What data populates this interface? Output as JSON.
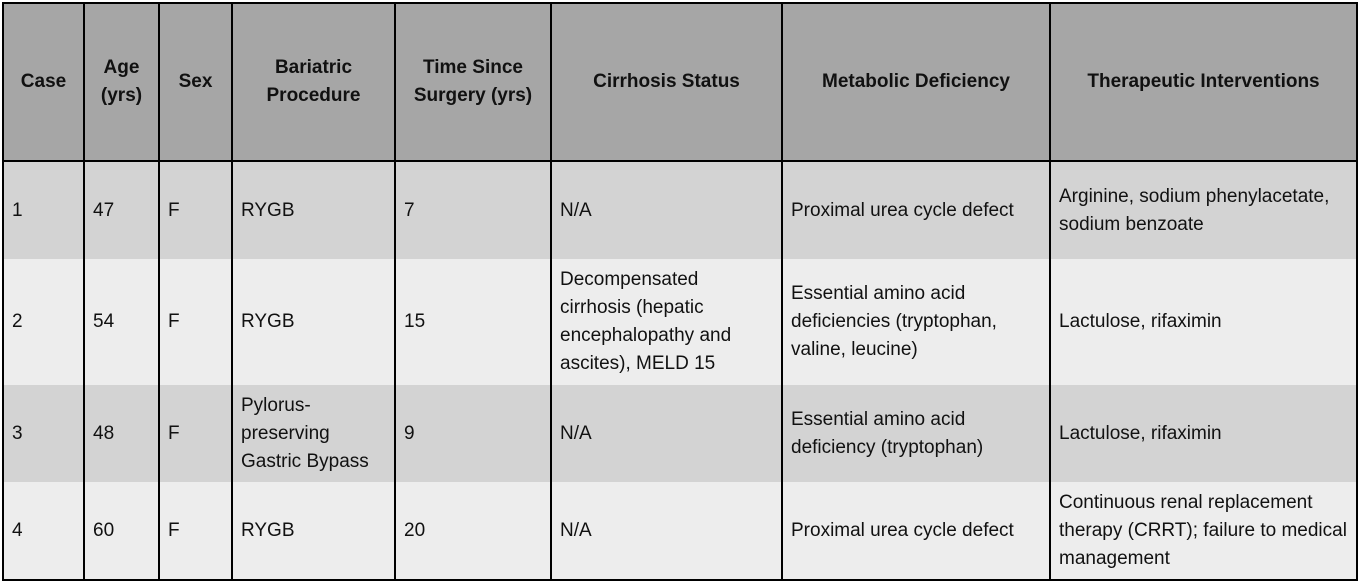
{
  "table": {
    "headers": [
      "Case",
      "Age (yrs)",
      "Sex",
      "Bariatric Procedure",
      "Time Since Surgery (yrs)",
      "Cirrhosis Status",
      "Metabolic Deficiency",
      "Therapeutic Interventions"
    ],
    "rows": [
      {
        "case": "1",
        "age": "47",
        "sex": "F",
        "procedure": "RYGB",
        "time_since_surgery": "7",
        "cirrhosis_status": "N/A",
        "metabolic_deficiency": "Proximal urea cycle defect",
        "interventions": "Arginine, sodium phenylacetate, sodium benzoate"
      },
      {
        "case": "2",
        "age": "54",
        "sex": "F",
        "procedure": "RYGB",
        "time_since_surgery": "15",
        "cirrhosis_status": "Decompensated cirrhosis (hepatic encephalopathy and ascites), MELD 15",
        "metabolic_deficiency": "Essential amino acid deficiencies (tryptophan, valine, leucine)",
        "interventions": "Lactulose, rifaximin"
      },
      {
        "case": "3",
        "age": "48",
        "sex": "F",
        "procedure": "Pylorus-preserving Gastric Bypass",
        "time_since_surgery": "9",
        "cirrhosis_status": "N/A",
        "metabolic_deficiency": "Essential amino acid deficiency (tryptophan)",
        "interventions": "Lactulose, rifaximin"
      },
      {
        "case": "4",
        "age": "60",
        "sex": "F",
        "procedure": "RYGB",
        "time_since_surgery": "20",
        "cirrhosis_status": "N/A",
        "metabolic_deficiency": "Proximal urea cycle defect",
        "interventions": "Continuous renal replacement therapy (CRRT); failure to medical management"
      }
    ]
  },
  "colors": {
    "header_bg": "#a6a6a6",
    "row_dark": "#d3d3d3",
    "row_light": "#ededed",
    "border": "#000000"
  }
}
